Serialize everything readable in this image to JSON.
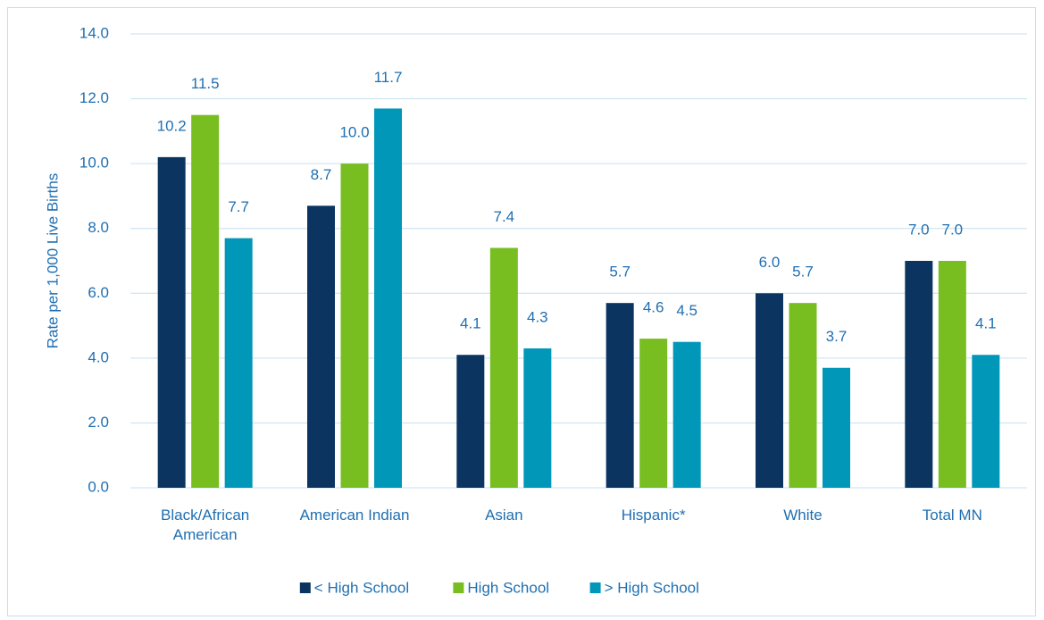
{
  "chart_data": {
    "type": "bar",
    "y_label": "Rate per 1,000 Live Births",
    "categories": [
      "Black/African American",
      "American Indian",
      "Asian",
      "Hispanic*",
      "White",
      "Total MN"
    ],
    "series": [
      {
        "name": "< High School",
        "color": "#0b3560",
        "values": [
          10.2,
          8.7,
          4.1,
          5.7,
          6.0,
          7.0
        ],
        "value_labels": [
          "10.2",
          "8.7",
          "4.1",
          "5.7",
          "6.0",
          "7.0"
        ]
      },
      {
        "name": "High School",
        "color": "#78be21",
        "values": [
          11.5,
          10.0,
          7.4,
          4.6,
          5.7,
          7.0
        ],
        "value_labels": [
          "11.5",
          "10.0",
          "7.4",
          "4.6",
          "5.7",
          "7.0"
        ]
      },
      {
        "name": "> High School",
        "color": "#0097b8",
        "values": [
          7.7,
          11.7,
          4.3,
          4.5,
          3.7,
          4.1
        ],
        "value_labels": [
          "7.7",
          "11.7",
          "4.3",
          "4.5",
          "3.7",
          "4.1"
        ]
      }
    ],
    "ylim": [
      0,
      14
    ],
    "yticks": [
      {
        "value": 0,
        "label": "0.0"
      },
      {
        "value": 2,
        "label": "2.0"
      },
      {
        "value": 4,
        "label": "4.0"
      },
      {
        "value": 6,
        "label": "6.0"
      },
      {
        "value": 8,
        "label": "8.0"
      },
      {
        "value": 10,
        "label": "10.0"
      },
      {
        "value": 12,
        "label": "12.0"
      },
      {
        "value": 14,
        "label": "14.0"
      }
    ],
    "grid": true,
    "legend": "bottom"
  }
}
